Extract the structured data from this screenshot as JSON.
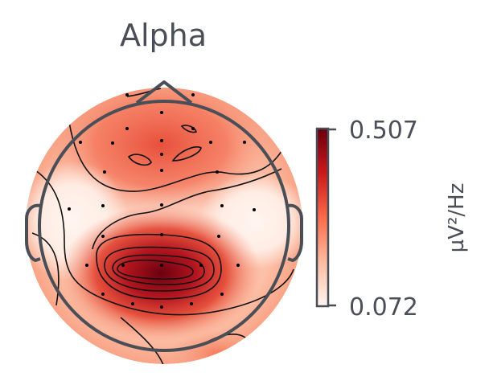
{
  "chart_data": {
    "type": "heatmap",
    "title": "Alpha",
    "colorbar": {
      "max_label": "0.507",
      "min_label": "0.072",
      "unit": "µV²/Hz",
      "colormap": "Reds",
      "vmin": 0.072,
      "vmax": 0.507
    },
    "colors": {
      "outline": "#4a4f57",
      "contour": "#111111",
      "low": "#fff5f0",
      "high": "#67000d"
    },
    "sensor_count": 32
  }
}
